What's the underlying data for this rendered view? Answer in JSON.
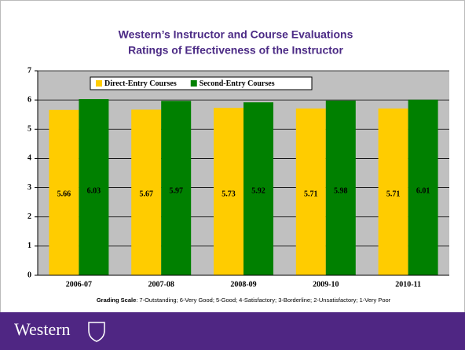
{
  "chart_data": {
    "type": "bar",
    "title": "Western’s Instructor and Course Evaluations",
    "subtitle": "Ratings of Effectiveness of the Instructor",
    "categories": [
      "2006-07",
      "2007-08",
      "2008-09",
      "2009-10",
      "2010-11"
    ],
    "series": [
      {
        "name": "Direct-Entry Courses",
        "color": "#ffcc00",
        "values": [
          5.66,
          5.67,
          5.73,
          5.71,
          5.71
        ]
      },
      {
        "name": "Second-Entry Courses",
        "color": "#008000",
        "values": [
          6.03,
          5.97,
          5.92,
          5.98,
          6.01
        ]
      }
    ],
    "ylim": [
      0,
      7
    ],
    "yticks": [
      0,
      1,
      2,
      3,
      4,
      5,
      6,
      7
    ],
    "grid": true,
    "legend": "top",
    "plot_background": "#c0c0c0",
    "grading_scale_label": "Grading Scale",
    "grading_scale": ": 7-Outstanding; 6-Very Good; 5-Good; 4-Satisfactory; 3-Borderline; 2-Unsatisfactory; 1-Very Poor"
  },
  "footer": {
    "logo_text": "Western"
  }
}
